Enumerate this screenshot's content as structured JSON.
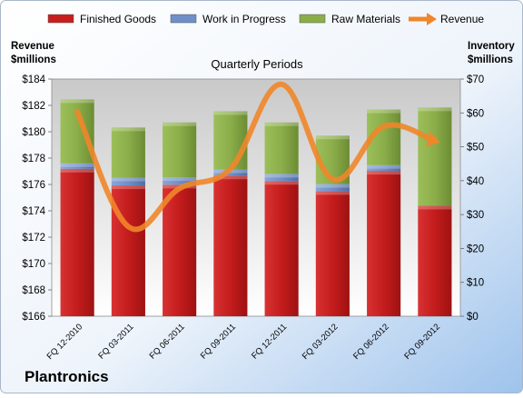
{
  "company": "Plantronics",
  "chart_data": {
    "type": "bar",
    "stacked": true,
    "secondary_line": true,
    "title": "Quarterly Periods",
    "left_axis_label": [
      "Revenue",
      "$millions"
    ],
    "right_axis_label": [
      "Inventory",
      "$millions"
    ],
    "categories": [
      "FQ 12-2010",
      "FQ 03-2011",
      "FQ 06-2011",
      "FQ 09-2011",
      "FQ 12-2011",
      "FQ 03-2012",
      "FQ 06-2012",
      "FQ 09-2012"
    ],
    "series": [
      {
        "name": "Finished Goods",
        "axis": "right",
        "color": "#c81e1e",
        "values": [
          43.5,
          38.6,
          38.8,
          41.5,
          39.9,
          36.9,
          42.9,
          32.6
        ]
      },
      {
        "name": "Work in Progress",
        "axis": "right",
        "color": "#6f8fc7",
        "values": [
          1.6,
          2.3,
          2.2,
          1.8,
          2.1,
          2.1,
          1.7,
          0.0
        ]
      },
      {
        "name": "Raw Materials",
        "axis": "right",
        "color": "#8bae4a",
        "values": [
          18.9,
          14.8,
          16.2,
          17.2,
          15.2,
          14.3,
          16.4,
          29.0
        ]
      }
    ],
    "line_series": {
      "name": "Revenue",
      "axis": "left",
      "color": "#f0862a",
      "values": [
        181.5,
        172.8,
        175.7,
        177.2,
        183.6,
        176.4,
        180.4,
        179.3
      ]
    },
    "left_axis": {
      "min": 166,
      "max": 184,
      "step": 2,
      "prefix": "$"
    },
    "right_axis": {
      "min": 0,
      "max": 70,
      "step": 10,
      "prefix": "$"
    },
    "legend_position": "top",
    "grid": false
  }
}
